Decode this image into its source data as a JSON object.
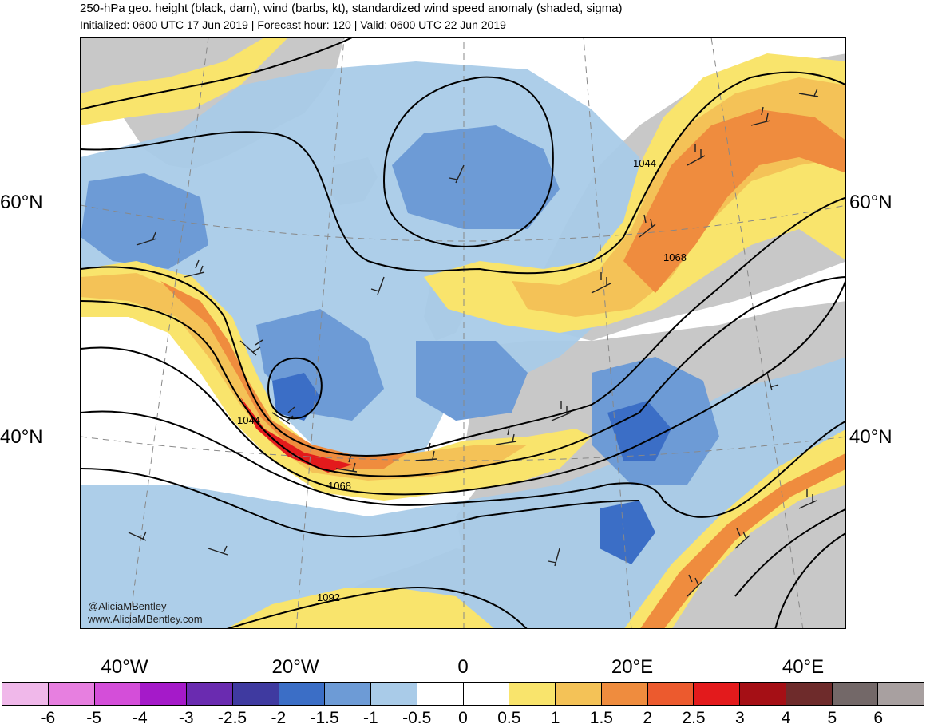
{
  "header": {
    "title": "250-hPa geo. height (black, dam), wind (barbs, kt), standardized wind speed anomaly (shaded, sigma)",
    "subtitle": "Initialized: 0600 UTC 17 Jun 2019 | Forecast hour: 120 | Valid: 0600 UTC 22 Jun 2019"
  },
  "map": {
    "lat_labels": [
      "60°N",
      "40°N"
    ],
    "lon_labels": [
      "40°W",
      "20°W",
      "0",
      "20°E",
      "40°E"
    ],
    "contour_labels": [
      "1044",
      "1068",
      "1044",
      "1068",
      "1092"
    ],
    "credit": {
      "handle": "@AliciaMBentley",
      "site": "www.AliciaMBentley.com"
    },
    "colors": {
      "land": "#c8c8c8",
      "light_blue": "#a9cbe8",
      "mid_blue": "#6d9bd6",
      "dark_blue": "#3b6ec6",
      "yellow": "#f9e46c",
      "light_orange": "#f4c257",
      "orange": "#ef8c3e",
      "red_orange": "#ec5a2e",
      "red": "#e31a1c"
    }
  },
  "colorbar": {
    "colors": [
      "#f0b8ea",
      "#e77fe0",
      "#d44ed9",
      "#a51ac9",
      "#6a2bb0",
      "#3f3aa0",
      "#3b6ec6",
      "#6d9bd6",
      "#a9cbe8",
      "#ffffff",
      "#ffffff",
      "#f9e46c",
      "#f4c257",
      "#ef8c3e",
      "#ec5a2e",
      "#e31a1c",
      "#a50f15",
      "#6e2b2b",
      "#736868",
      "#a8a0a0"
    ],
    "ticks": [
      "-6",
      "-5",
      "-4",
      "-3",
      "-2.5",
      "-2",
      "-1.5",
      "-1",
      "-0.5",
      "0",
      "0.5",
      "1",
      "1.5",
      "2",
      "2.5",
      "3",
      "4",
      "5",
      "6"
    ]
  }
}
